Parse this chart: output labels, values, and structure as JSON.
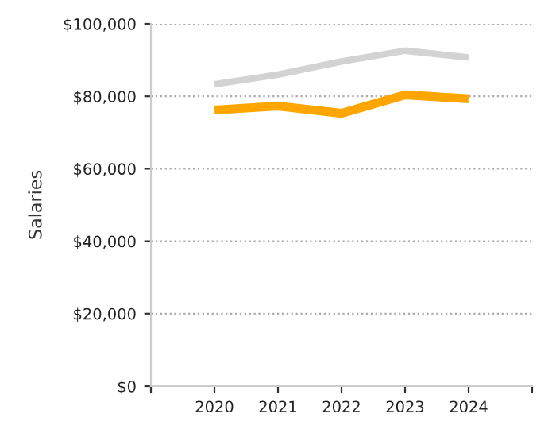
{
  "chart_data": {
    "type": "line",
    "ylabel": "Salaries",
    "x": [
      2020,
      2021,
      2022,
      2023,
      2024
    ],
    "series": [
      {
        "color": "#d3d3d3",
        "values": [
          83300,
          86000,
          89600,
          92600,
          90700
        ]
      },
      {
        "color": "#ffa500",
        "values": [
          76200,
          77300,
          75300,
          80400,
          79300
        ]
      }
    ],
    "xlim": [
      2019,
      2025
    ],
    "xticks": [
      {
        "value": 2019,
        "label": null
      },
      2020,
      2021,
      2022,
      2023,
      2024,
      {
        "value": 2025,
        "label": null
      }
    ],
    "ylim": [
      0,
      100000
    ],
    "yticks": [
      {
        "value": 0,
        "label": "$0"
      },
      {
        "value": 20000,
        "label": "$20,000"
      },
      {
        "value": 40000,
        "label": "$40,000"
      },
      {
        "value": 60000,
        "label": "$60,000"
      },
      {
        "value": 80000,
        "label": "$80,000"
      },
      {
        "value": 100000,
        "label": "$100,000"
      }
    ],
    "grid": "y",
    "marker": "none",
    "line_style": "solid"
  }
}
